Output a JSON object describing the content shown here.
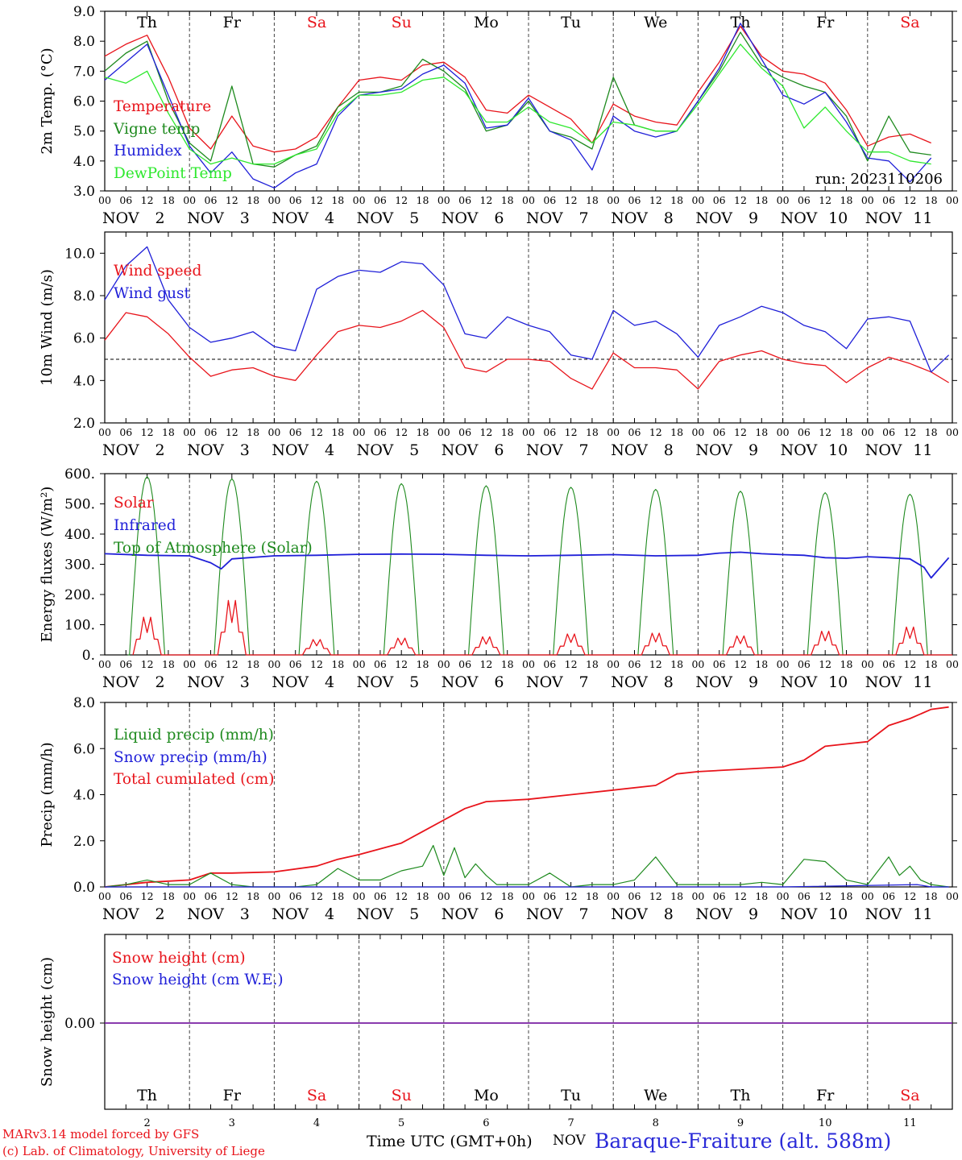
{
  "colors": {
    "red": "#e8141b",
    "blue": "#1f1fd8",
    "darkgreen": "#1e8a1e",
    "lightgreen": "#2ee82e",
    "purple": "#7a1fa2",
    "axis": "#000000"
  },
  "days": [
    {
      "name": "Th",
      "date": "2",
      "weekend": false
    },
    {
      "name": "Fr",
      "date": "3",
      "weekend": false
    },
    {
      "name": "Sa",
      "date": "4",
      "weekend": true
    },
    {
      "name": "Su",
      "date": "5",
      "weekend": true
    },
    {
      "name": "Mo",
      "date": "6",
      "weekend": false
    },
    {
      "name": "Tu",
      "date": "7",
      "weekend": false
    },
    {
      "name": "We",
      "date": "8",
      "weekend": false
    },
    {
      "name": "Th",
      "date": "9",
      "weekend": false
    },
    {
      "name": "Fr",
      "date": "10",
      "weekend": false
    },
    {
      "name": "Sa",
      "date": "11",
      "weekend": true
    }
  ],
  "hour_ticks": [
    "00",
    "06",
    "12",
    "18"
  ],
  "month_label": "NOV",
  "footer": {
    "credit1": "MARv3.14 model forced by GFS",
    "credit2": "(c) Lab. of Climatology, University of Liege",
    "x_title": "Time UTC (GMT+0h)",
    "x_unit": "NOV",
    "station": "Baraque-Fraiture (alt. 588m)"
  },
  "chart_data": [
    {
      "type": "line",
      "ylabel": "2m Temp. (°C)",
      "ylim": [
        3.0,
        9.0
      ],
      "yticks": [
        "3.0",
        "4.0",
        "5.0",
        "6.0",
        "7.0",
        "8.0",
        "9.0"
      ],
      "annotation": "run: 2023110206",
      "x_unit": "hours since NOV 2 00 UTC",
      "legend": [
        "Temperature",
        "Vigne temp",
        "Humidex",
        "DewPoint Temp"
      ],
      "series": [
        {
          "name": "Temperature",
          "color": "red",
          "x": [
            0,
            6,
            12,
            18,
            24,
            30,
            36,
            42,
            48,
            54,
            60,
            66,
            72,
            78,
            84,
            90,
            96,
            102,
            108,
            114,
            120,
            126,
            132,
            138,
            144,
            150,
            156,
            162,
            168,
            174,
            180,
            186,
            192,
            198,
            204,
            210,
            216,
            222,
            228,
            234
          ],
          "values": [
            7.5,
            7.9,
            8.2,
            6.8,
            5.1,
            4.4,
            5.5,
            4.5,
            4.3,
            4.4,
            4.8,
            5.8,
            6.7,
            6.8,
            6.7,
            7.2,
            7.3,
            6.8,
            5.7,
            5.6,
            6.2,
            5.8,
            5.4,
            4.6,
            5.9,
            5.5,
            5.3,
            5.2,
            6.3,
            7.3,
            8.5,
            7.5,
            7.0,
            6.9,
            6.6,
            5.7,
            4.5,
            4.8,
            4.9,
            4.6
          ]
        },
        {
          "name": "Vigne temp",
          "color": "darkgreen",
          "x": [
            0,
            6,
            12,
            18,
            24,
            30,
            36,
            42,
            48,
            54,
            60,
            66,
            72,
            78,
            84,
            90,
            96,
            102,
            108,
            114,
            120,
            126,
            132,
            138,
            144,
            150,
            156,
            162,
            168,
            174,
            180,
            186,
            192,
            198,
            204,
            210,
            216,
            222,
            228,
            234
          ],
          "values": [
            7.0,
            7.6,
            8.0,
            6.0,
            4.6,
            4.0,
            6.5,
            3.9,
            3.8,
            4.2,
            4.5,
            5.8,
            6.3,
            6.3,
            6.5,
            7.4,
            7.0,
            6.4,
            5.0,
            5.2,
            6.0,
            5.0,
            4.8,
            4.4,
            6.8,
            5.2,
            5.0,
            5.0,
            6.0,
            7.0,
            8.3,
            7.2,
            6.8,
            6.5,
            6.3,
            5.5,
            4.0,
            5.5,
            4.3,
            4.2
          ]
        },
        {
          "name": "Humidex",
          "color": "blue",
          "x": [
            0,
            6,
            12,
            18,
            24,
            30,
            36,
            42,
            48,
            54,
            60,
            66,
            72,
            78,
            84,
            90,
            96,
            102,
            108,
            114,
            120,
            126,
            132,
            138,
            144,
            150,
            156,
            162,
            168,
            174,
            180,
            186,
            192,
            198,
            204,
            210,
            216,
            222,
            228,
            234
          ],
          "values": [
            6.7,
            7.3,
            7.9,
            6.2,
            4.5,
            3.6,
            4.3,
            3.4,
            3.1,
            3.6,
            3.9,
            5.5,
            6.2,
            6.3,
            6.4,
            6.9,
            7.2,
            6.6,
            5.1,
            5.2,
            6.1,
            5.0,
            4.7,
            3.7,
            5.5,
            5.0,
            4.8,
            5.0,
            6.0,
            7.1,
            8.6,
            7.4,
            6.2,
            5.9,
            6.3,
            5.3,
            4.1,
            4.0,
            3.3,
            4.1
          ]
        },
        {
          "name": "DewPoint Temp",
          "color": "lightgreen",
          "x": [
            0,
            6,
            12,
            18,
            24,
            30,
            36,
            42,
            48,
            54,
            60,
            66,
            72,
            78,
            84,
            90,
            96,
            102,
            108,
            114,
            120,
            126,
            132,
            138,
            144,
            150,
            156,
            162,
            168,
            174,
            180,
            186,
            192,
            198,
            204,
            210,
            216,
            222,
            228,
            234
          ],
          "values": [
            6.8,
            6.6,
            7.0,
            5.6,
            4.4,
            3.9,
            4.1,
            3.9,
            3.9,
            4.2,
            4.4,
            5.6,
            6.2,
            6.2,
            6.3,
            6.7,
            6.8,
            6.3,
            5.3,
            5.3,
            5.8,
            5.3,
            5.1,
            4.6,
            5.3,
            5.2,
            5.0,
            5.0,
            5.9,
            6.9,
            7.9,
            7.1,
            6.5,
            5.1,
            5.8,
            5.0,
            4.3,
            4.3,
            4.0,
            3.9
          ]
        }
      ]
    },
    {
      "type": "line",
      "ylabel": "10m Wind (m/s)",
      "ylim": [
        2.0,
        11.0
      ],
      "yticks": [
        "2.0",
        "4.0",
        "6.0",
        "8.0",
        "10.0"
      ],
      "reference_line": 5.0,
      "x_unit": "hours since NOV 2 00 UTC",
      "legend": [
        "Wind speed",
        "Wind gust"
      ],
      "series": [
        {
          "name": "Wind speed",
          "color": "red",
          "x": [
            0,
            6,
            12,
            18,
            24,
            30,
            36,
            42,
            48,
            54,
            60,
            66,
            72,
            78,
            84,
            90,
            96,
            102,
            108,
            114,
            120,
            126,
            132,
            138,
            144,
            150,
            156,
            162,
            168,
            174,
            180,
            186,
            192,
            198,
            204,
            210,
            216,
            222,
            228,
            234,
            239
          ],
          "values": [
            5.9,
            7.2,
            7.0,
            6.2,
            5.1,
            4.2,
            4.5,
            4.6,
            4.2,
            4.0,
            5.2,
            6.3,
            6.6,
            6.5,
            6.8,
            7.3,
            6.5,
            4.6,
            4.4,
            5.0,
            5.0,
            4.9,
            4.1,
            3.6,
            5.3,
            4.6,
            4.6,
            4.5,
            3.6,
            4.9,
            5.2,
            5.4,
            5.0,
            4.8,
            4.7,
            3.9,
            4.6,
            5.1,
            4.8,
            4.4,
            3.9
          ]
        },
        {
          "name": "Wind gust",
          "color": "blue",
          "x": [
            0,
            6,
            12,
            18,
            24,
            30,
            36,
            42,
            48,
            54,
            60,
            66,
            72,
            78,
            84,
            90,
            96,
            102,
            108,
            114,
            120,
            126,
            132,
            138,
            144,
            150,
            156,
            162,
            168,
            174,
            180,
            186,
            192,
            198,
            204,
            210,
            216,
            222,
            228,
            234,
            239
          ],
          "values": [
            7.8,
            9.4,
            10.3,
            7.8,
            6.5,
            5.8,
            6.0,
            6.3,
            5.6,
            5.4,
            8.3,
            8.9,
            9.2,
            9.1,
            9.6,
            9.5,
            8.5,
            6.2,
            6.0,
            7.0,
            6.6,
            6.3,
            5.2,
            5.0,
            7.3,
            6.6,
            6.8,
            6.2,
            5.1,
            6.6,
            7.0,
            7.5,
            7.2,
            6.6,
            6.3,
            5.5,
            6.9,
            7.0,
            6.8,
            4.4,
            5.2
          ]
        }
      ]
    },
    {
      "type": "line",
      "ylabel": "Energy fluxes (W/m²)",
      "ylim": [
        0,
        600
      ],
      "yticks": [
        "0.",
        "100.",
        "200.",
        "300.",
        "400.",
        "500.",
        "600."
      ],
      "x_unit": "hours since NOV 2 00 UTC",
      "legend": [
        "Solar",
        "Infrared",
        "Top of Atmosphere (Solar)"
      ],
      "toa_peaks": [
        590,
        583,
        575,
        567,
        560,
        555,
        548,
        542,
        537,
        532
      ],
      "solar_peaks": [
        135,
        195,
        55,
        60,
        65,
        75,
        78,
        68,
        85,
        100
      ],
      "series": [
        {
          "name": "Infrared",
          "color": "blue",
          "x": [
            0,
            12,
            24,
            30,
            33,
            36,
            48,
            60,
            72,
            84,
            96,
            108,
            120,
            132,
            144,
            156,
            168,
            174,
            180,
            186,
            192,
            198,
            204,
            210,
            216,
            222,
            228,
            232,
            234,
            239
          ],
          "values": [
            335,
            330,
            328,
            305,
            285,
            318,
            328,
            330,
            333,
            334,
            333,
            330,
            328,
            330,
            332,
            328,
            330,
            337,
            340,
            335,
            332,
            330,
            322,
            320,
            325,
            322,
            318,
            290,
            255,
            322
          ]
        }
      ]
    },
    {
      "type": "line",
      "ylabel": "Precip (mm/h)",
      "ylim": [
        0.0,
        8.0
      ],
      "yticks": [
        "0.0",
        "2.0",
        "4.0",
        "6.0",
        "8.0"
      ],
      "x_unit": "hours since NOV 2 00 UTC",
      "legend": [
        "Liquid precip (mm/h)",
        "Snow precip (mm/h)",
        "Total cumulated (cm)"
      ],
      "series": [
        {
          "name": "Total cumulated (cm)",
          "color": "red",
          "x": [
            0,
            12,
            24,
            30,
            36,
            48,
            60,
            66,
            72,
            84,
            90,
            96,
            102,
            108,
            114,
            120,
            132,
            144,
            156,
            162,
            168,
            180,
            192,
            198,
            204,
            210,
            216,
            222,
            228,
            234,
            239
          ],
          "values": [
            0.0,
            0.2,
            0.3,
            0.6,
            0.6,
            0.65,
            0.9,
            1.2,
            1.4,
            1.9,
            2.4,
            2.9,
            3.4,
            3.7,
            3.75,
            3.8,
            4.0,
            4.2,
            4.4,
            4.9,
            5.0,
            5.1,
            5.2,
            5.5,
            6.1,
            6.2,
            6.3,
            7.0,
            7.3,
            7.7,
            7.8
          ]
        },
        {
          "name": "Liquid precip (mm/h)",
          "color": "darkgreen",
          "x": [
            0,
            6,
            12,
            18,
            24,
            30,
            36,
            42,
            48,
            54,
            60,
            66,
            72,
            78,
            84,
            90,
            93,
            96,
            99,
            102,
            105,
            108,
            111,
            114,
            120,
            126,
            132,
            138,
            144,
            150,
            156,
            162,
            168,
            174,
            180,
            186,
            192,
            198,
            204,
            210,
            216,
            222,
            225,
            228,
            231,
            234,
            239
          ],
          "values": [
            0.0,
            0.1,
            0.3,
            0.1,
            0.1,
            0.6,
            0.1,
            0.0,
            0.0,
            0.0,
            0.1,
            0.8,
            0.3,
            0.3,
            0.7,
            0.9,
            1.8,
            0.5,
            1.7,
            0.4,
            1.0,
            0.5,
            0.1,
            0.1,
            0.1,
            0.6,
            0.0,
            0.1,
            0.1,
            0.3,
            1.3,
            0.1,
            0.1,
            0.1,
            0.1,
            0.2,
            0.1,
            1.2,
            1.1,
            0.3,
            0.1,
            1.3,
            0.5,
            0.9,
            0.3,
            0.1,
            0.0
          ]
        },
        {
          "name": "Snow precip (mm/h)",
          "color": "blue",
          "x": [
            0,
            48,
            96,
            144,
            192,
            230,
            234,
            239
          ],
          "values": [
            0.0,
            0.0,
            0.0,
            0.0,
            0.0,
            0.1,
            0.0,
            0.0
          ]
        }
      ]
    },
    {
      "type": "line",
      "ylabel": "Snow height (cm)",
      "yticks": [
        "0.00"
      ],
      "x_unit": "hours since NOV 2 00 UTC",
      "legend": [
        "Snow height (cm)",
        "Snow height (cm W.E.)"
      ],
      "series": [
        {
          "name": "Snow height (cm)",
          "color": "red",
          "x": [
            0,
            240
          ],
          "values": [
            0.0,
            0.0
          ]
        },
        {
          "name": "Snow height (cm W.E.)",
          "color": "blue",
          "x": [
            0,
            240
          ],
          "values": [
            0.0,
            0.0
          ]
        }
      ]
    }
  ]
}
